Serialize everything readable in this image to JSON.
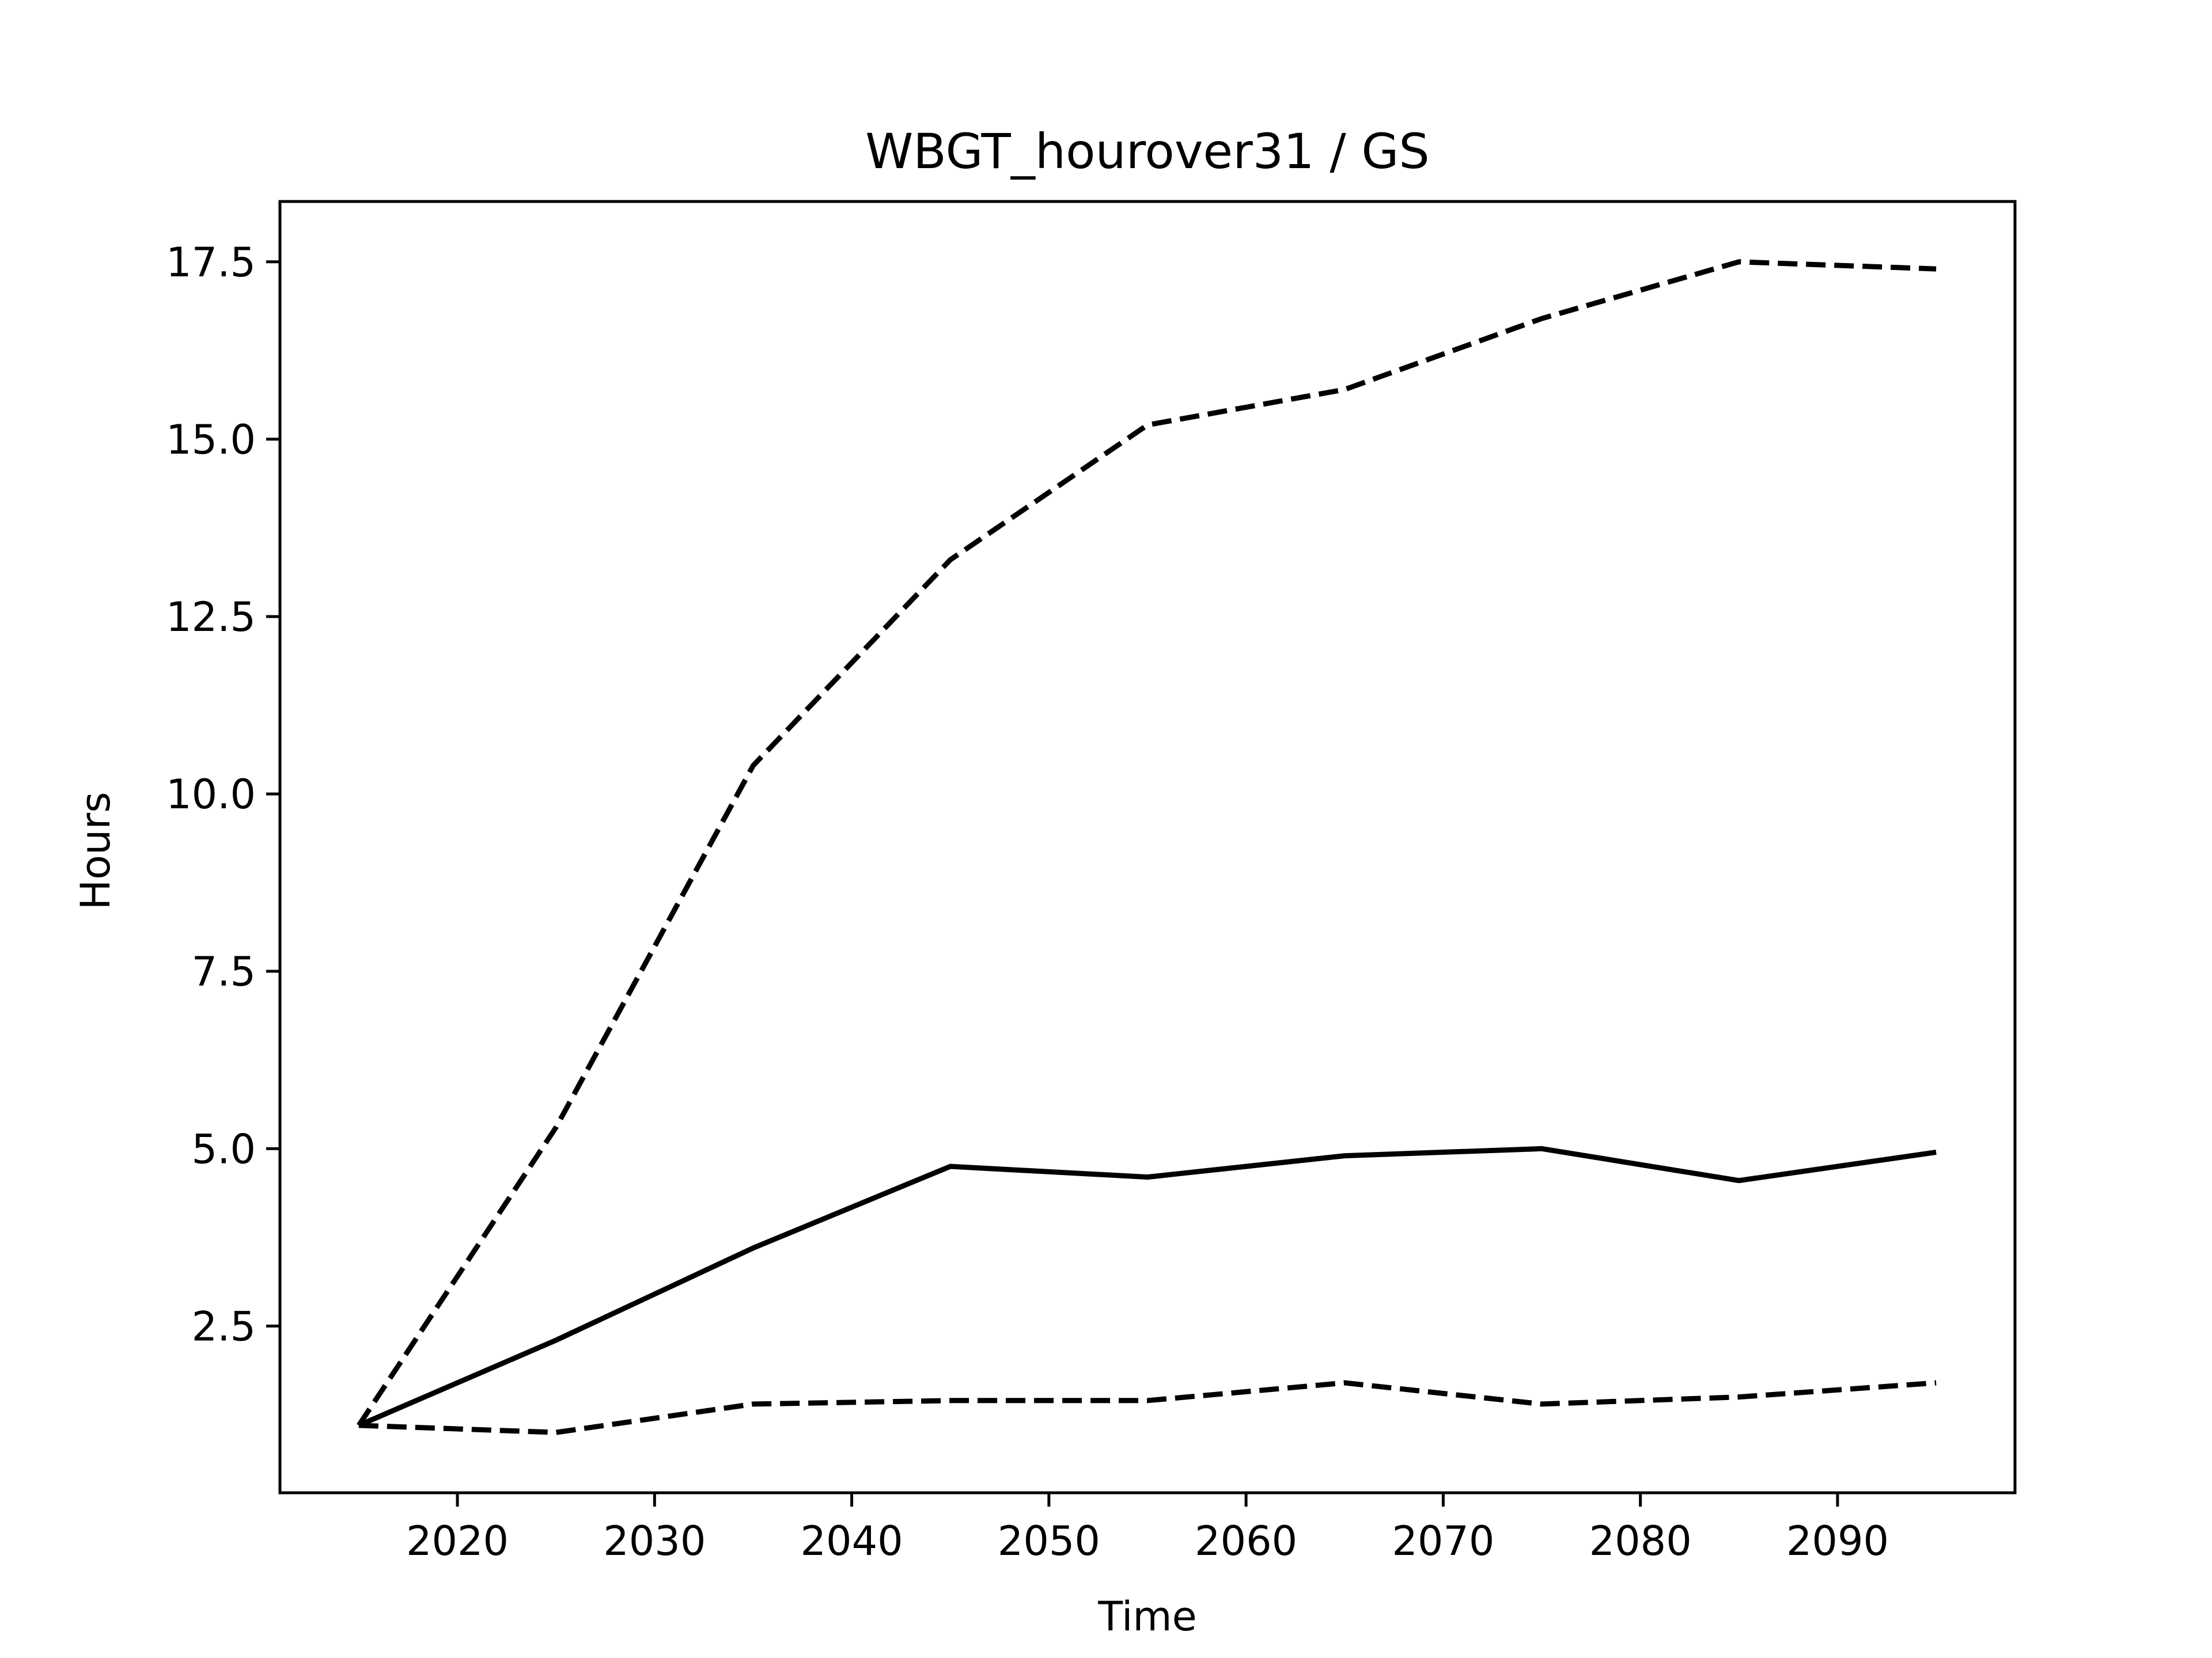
{
  "chart_data": {
    "type": "line",
    "title": "WBGT_hourover31 / GS",
    "xlabel": "Time",
    "ylabel": "Hours",
    "xlim": [
      2011,
      2099
    ],
    "ylim": [
      0.15,
      18.35
    ],
    "x": [
      2015,
      2025,
      2035,
      2045,
      2055,
      2065,
      2075,
      2085,
      2095
    ],
    "xticks": [
      2020,
      2030,
      2040,
      2050,
      2060,
      2070,
      2080,
      2090
    ],
    "xtick_labels": [
      "2020",
      "2030",
      "2040",
      "2050",
      "2060",
      "2070",
      "2080",
      "2090"
    ],
    "yticks": [
      2.5,
      5.0,
      7.5,
      10.0,
      12.5,
      15.0,
      17.5
    ],
    "ytick_labels": [
      "2.5",
      "5.0",
      "7.5",
      "10.0",
      "12.5",
      "15.0",
      "17.5"
    ],
    "grid": false,
    "legend": "none",
    "series": [
      {
        "style": "dashed",
        "color": "#000000",
        "values": [
          1.1,
          5.3,
          10.4,
          13.3,
          15.2,
          15.7,
          16.7,
          17.5,
          17.4
        ]
      },
      {
        "style": "solid",
        "color": "#000000",
        "values": [
          1.1,
          2.3,
          3.6,
          4.75,
          4.6,
          4.9,
          5.0,
          4.55,
          4.95
        ]
      },
      {
        "style": "dashed",
        "color": "#000000",
        "values": [
          1.1,
          1.0,
          1.4,
          1.45,
          1.45,
          1.7,
          1.4,
          1.5,
          1.7
        ]
      }
    ]
  }
}
